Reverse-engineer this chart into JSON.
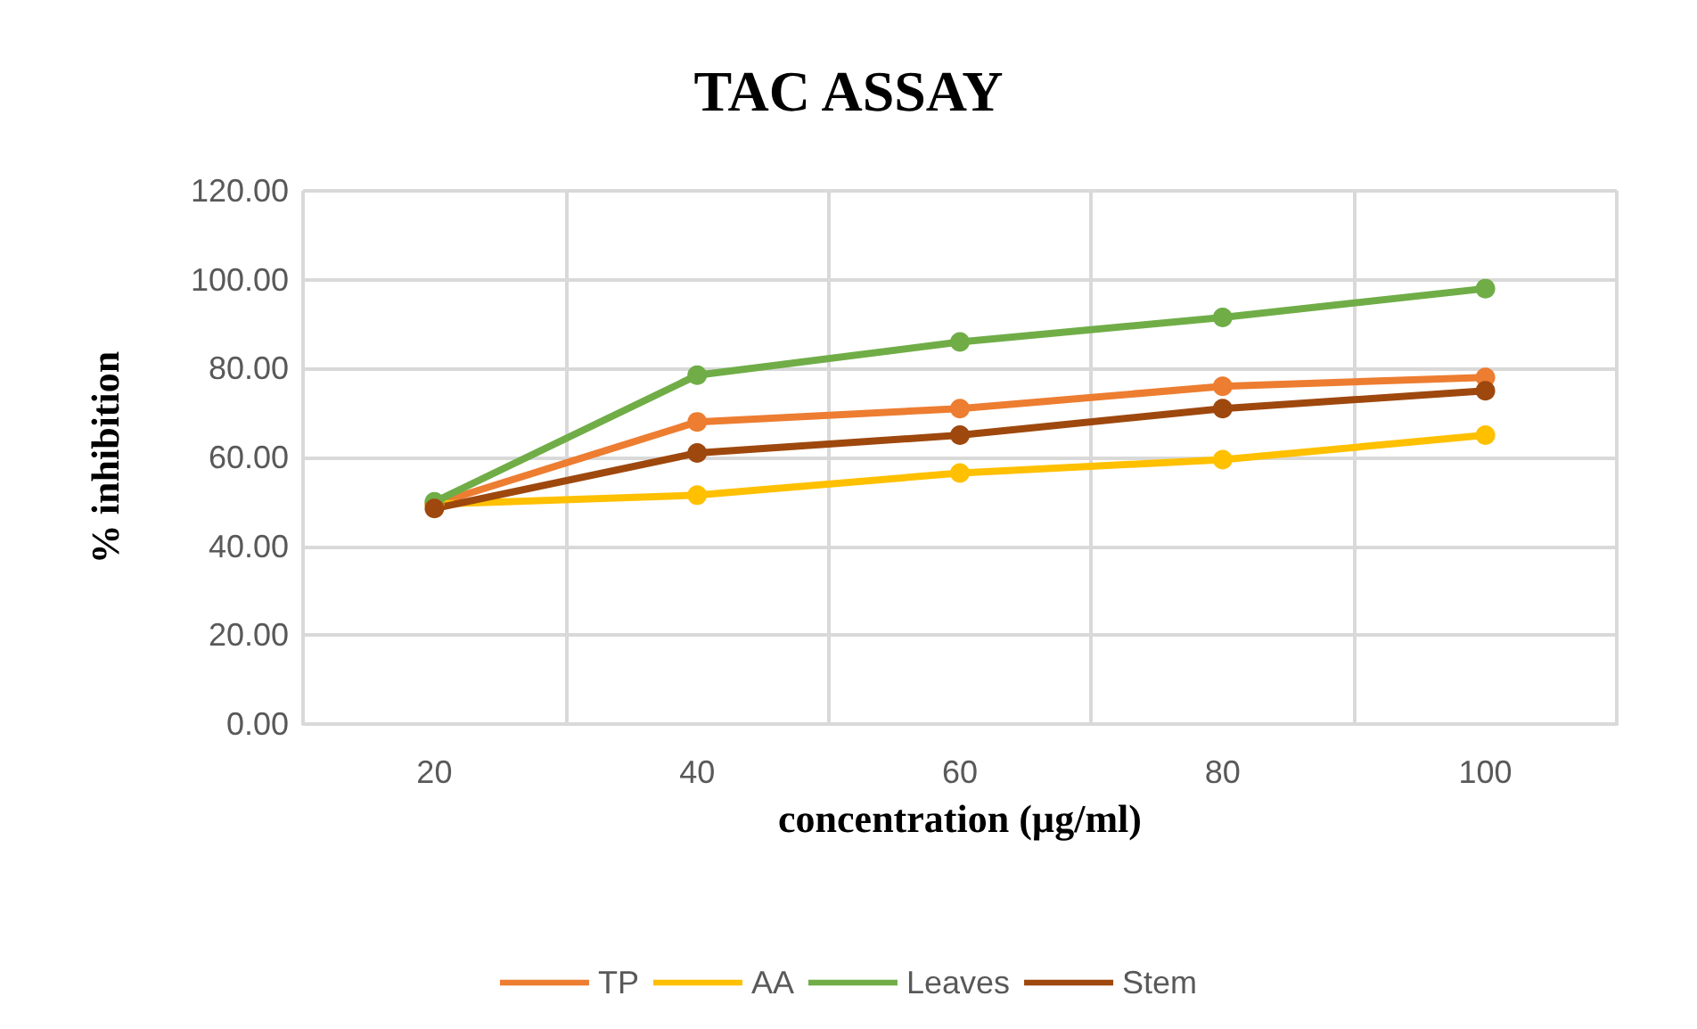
{
  "chart_data": {
    "type": "line",
    "title": "TAC ASSAY",
    "xlabel": "concentration (µg/ml)",
    "ylabel": "% inhibition",
    "categories": [
      "20",
      "40",
      "60",
      "80",
      "100"
    ],
    "series": [
      {
        "name": "TP",
        "color": "#ed7d31",
        "values": [
          49.5,
          68,
          71,
          76,
          78
        ]
      },
      {
        "name": "AA",
        "color": "#ffc000",
        "values": [
          49.5,
          51.5,
          56.5,
          59.5,
          65
        ]
      },
      {
        "name": "Leaves",
        "color": "#70ad47",
        "values": [
          50,
          78.5,
          86,
          91.5,
          98
        ]
      },
      {
        "name": "Stem",
        "color": "#9e480e",
        "values": [
          48.5,
          61,
          65,
          71,
          75
        ]
      }
    ],
    "ylim": [
      0,
      120
    ],
    "yticks": [
      {
        "value": 0,
        "label": "0.00"
      },
      {
        "value": 20,
        "label": "20.00"
      },
      {
        "value": 40,
        "label": "40.00"
      },
      {
        "value": 60,
        "label": "60.00"
      },
      {
        "value": 80,
        "label": "80.00"
      },
      {
        "value": 100,
        "label": "100.00"
      },
      {
        "value": 120,
        "label": "120.00"
      }
    ],
    "grid": true,
    "legend": "bottom",
    "marker": "circle",
    "line_style": "solid"
  }
}
